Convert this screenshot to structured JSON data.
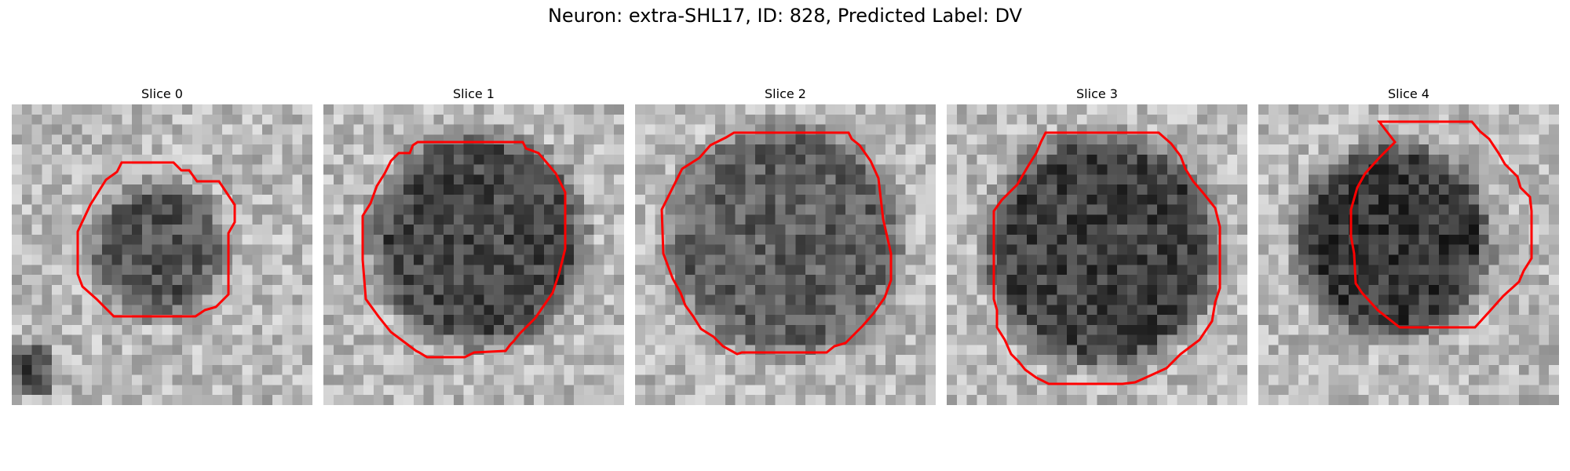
{
  "figure": {
    "title": "Neuron: extra-SHL17, ID: 828, Predicted Label: DV"
  },
  "panels": [
    {
      "title": "Slice 0"
    },
    {
      "title": "Slice 1"
    },
    {
      "title": "Slice 2"
    },
    {
      "title": "Slice 3"
    },
    {
      "title": "Slice 4"
    }
  ],
  "colors": {
    "contour": "#ff0000"
  }
}
